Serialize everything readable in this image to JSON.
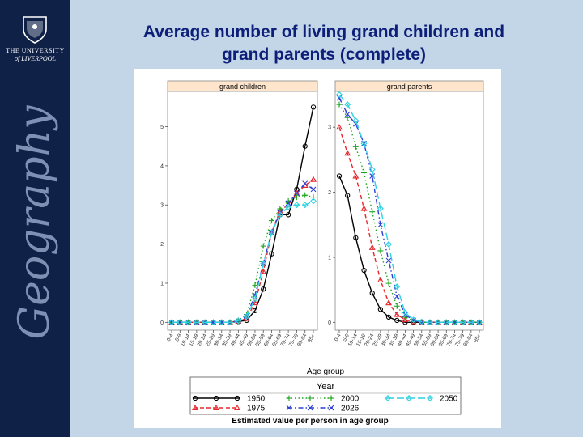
{
  "sidebar": {
    "university_line1": "THE UNIVERSITY",
    "university_line2": "of LIVERPOOL",
    "vertical_word": "Geography",
    "crest_icon": "university-crest-icon"
  },
  "slide": {
    "title_line1": "Average number of living grand children and",
    "title_line2": "grand parents (complete)",
    "title_color": "#0e1f79",
    "background": "#c3d6e8"
  },
  "chart_data": {
    "type": "line",
    "xlabel": "Age group",
    "legend_title": "Year",
    "footer": "Estimated value per person in age group",
    "categories": [
      "0-4",
      "5-9",
      "10-14",
      "15-19",
      "20-24",
      "25-29",
      "30-34",
      "35-39",
      "40-44",
      "45-49",
      "50-54",
      "55-59",
      "60-64",
      "65-69",
      "70-74",
      "75-79",
      "80-84",
      "85+"
    ],
    "series_styles": [
      {
        "name": "1950",
        "color": "#000000",
        "marker": "circle",
        "dash": "solid"
      },
      {
        "name": "1975",
        "color": "#e8262c",
        "marker": "triangle",
        "dash": "dashed"
      },
      {
        "name": "2000",
        "color": "#1fa51f",
        "marker": "plus",
        "dash": "dotted"
      },
      {
        "name": "2026",
        "color": "#2c3fd6",
        "marker": "cross",
        "dash": "dashdot"
      },
      {
        "name": "2050",
        "color": "#2fd2e0",
        "marker": "diamond",
        "dash": "longdash"
      }
    ],
    "panels": [
      {
        "title": "grand children",
        "ylim": [
          -0.2,
          5.9
        ],
        "yticks": [
          0,
          1,
          2,
          3,
          4,
          5
        ],
        "series": [
          {
            "name": "1950",
            "values": [
              0,
              0,
              0,
              0,
              0,
              0,
              0,
              0,
              0.02,
              0.05,
              0.3,
              0.85,
              1.75,
              2.75,
              2.75,
              3.4,
              4.5,
              5.5
            ]
          },
          {
            "name": "1975",
            "values": [
              0,
              0,
              0,
              0,
              0,
              0,
              0,
              0,
              0.03,
              0.1,
              0.5,
              1.3,
              2.3,
              2.85,
              3.0,
              3.3,
              3.5,
              3.65
            ]
          },
          {
            "name": "2000",
            "values": [
              0,
              0,
              0,
              0,
              0,
              0,
              0,
              0,
              0.05,
              0.2,
              0.95,
              1.95,
              2.6,
              2.9,
              3.1,
              3.2,
              3.25,
              3.2
            ]
          },
          {
            "name": "2026",
            "values": [
              0,
              0,
              0,
              0,
              0,
              0,
              0,
              0,
              0.04,
              0.15,
              0.7,
              1.5,
              2.3,
              2.8,
              3.05,
              3.3,
              3.55,
              3.4
            ]
          },
          {
            "name": "2050",
            "values": [
              0,
              0,
              0,
              0,
              0,
              0,
              0,
              0,
              0.04,
              0.15,
              0.6,
              1.5,
              2.3,
              2.75,
              2.95,
              3.0,
              3.0,
              3.1
            ]
          }
        ]
      },
      {
        "title": "grand parents",
        "ylim": [
          -0.12,
          3.55
        ],
        "yticks": [
          0,
          1,
          2,
          3
        ],
        "series": [
          {
            "name": "1950",
            "values": [
              2.25,
              1.95,
              1.3,
              0.8,
              0.45,
              0.2,
              0.08,
              0.03,
              0,
              0,
              0,
              0,
              0,
              0,
              0,
              0,
              0,
              0
            ]
          },
          {
            "name": "1975",
            "values": [
              3.0,
              2.6,
              2.25,
              1.75,
              1.15,
              0.65,
              0.3,
              0.12,
              0.04,
              0.01,
              0,
              0,
              0,
              0,
              0,
              0,
              0,
              0
            ]
          },
          {
            "name": "2000",
            "values": [
              3.35,
              3.15,
              2.7,
              2.3,
              1.7,
              1.1,
              0.6,
              0.25,
              0.08,
              0.02,
              0,
              0,
              0,
              0,
              0,
              0,
              0,
              0
            ]
          },
          {
            "name": "2026",
            "values": [
              3.45,
              3.2,
              3.05,
              2.75,
              2.25,
              1.5,
              0.95,
              0.4,
              0.12,
              0.03,
              0,
              0,
              0,
              0,
              0,
              0,
              0,
              0
            ]
          },
          {
            "name": "2050",
            "values": [
              3.5,
              3.35,
              3.1,
              2.75,
              2.35,
              1.75,
              1.2,
              0.55,
              0.15,
              0.04,
              0.01,
              0,
              0,
              0,
              0,
              0,
              0,
              0
            ]
          }
        ]
      }
    ]
  }
}
